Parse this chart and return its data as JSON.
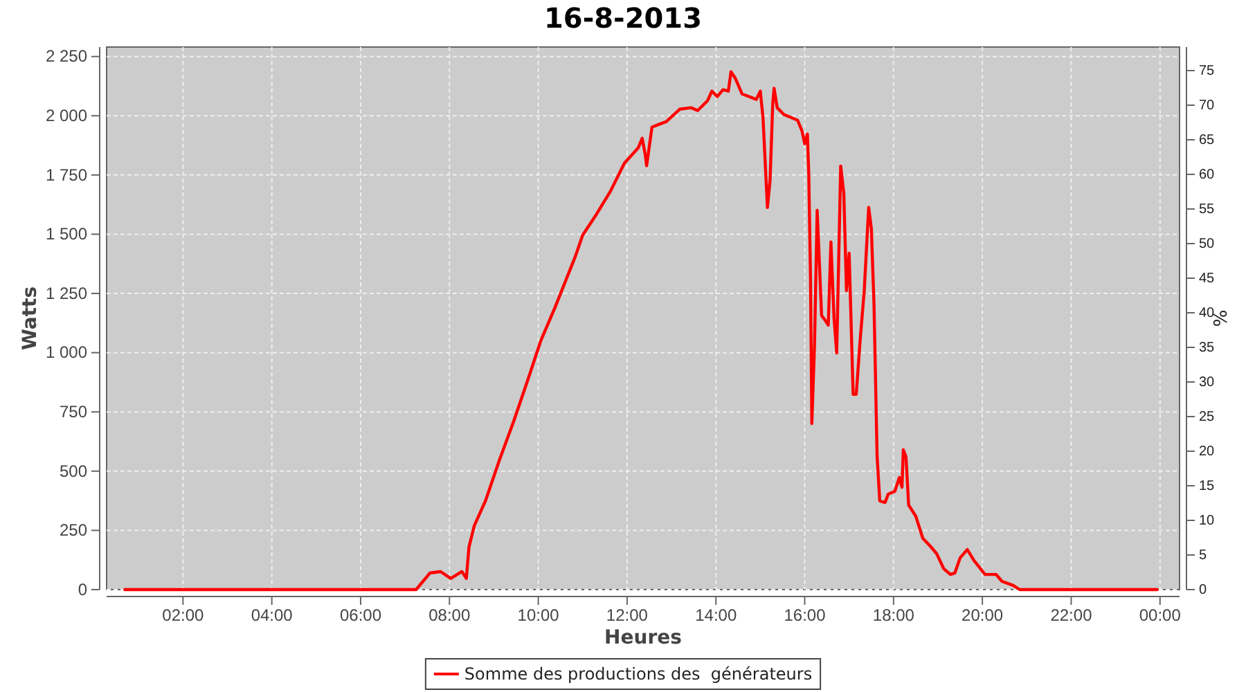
{
  "chart_data": {
    "type": "line",
    "title": "16-8-2013",
    "xlabel": "Heures",
    "ylabel": "Watts",
    "y2label": "%",
    "xlim": [
      0.28,
      24.44
    ],
    "ylim": [
      0,
      2290
    ],
    "y2lim": [
      0,
      78.4
    ],
    "xticks": [
      {
        "value": 2,
        "label": "02:00"
      },
      {
        "value": 4,
        "label": "04:00"
      },
      {
        "value": 6,
        "label": "06:00"
      },
      {
        "value": 8,
        "label": "08:00"
      },
      {
        "value": 10,
        "label": "10:00"
      },
      {
        "value": 12,
        "label": "12:00"
      },
      {
        "value": 14,
        "label": "14:00"
      },
      {
        "value": 16,
        "label": "16:00"
      },
      {
        "value": 18,
        "label": "18:00"
      },
      {
        "value": 20,
        "label": "20:00"
      },
      {
        "value": 22,
        "label": "22:00"
      },
      {
        "value": 24,
        "label": "00:00"
      }
    ],
    "yticks": [
      0,
      250,
      500,
      750,
      {
        "value": 1000,
        "label": "1 000"
      },
      {
        "value": 1250,
        "label": "1 250"
      },
      {
        "value": 1500,
        "label": "1 500"
      },
      {
        "value": 1750,
        "label": "1 750"
      },
      {
        "value": 2000,
        "label": "2 000"
      },
      {
        "value": 2250,
        "label": "2 250"
      }
    ],
    "y2ticks": [
      0,
      5,
      10,
      15,
      20,
      25,
      30,
      35,
      40,
      45,
      50,
      55,
      60,
      65,
      70,
      75
    ],
    "grid": true,
    "legend": "bottom",
    "marker": "none",
    "line_style": "solid",
    "series": [
      {
        "name": "Somme des productions des  générateurs",
        "color": "#ff0000",
        "x": [
          0.69,
          7.25,
          7.56,
          7.8,
          8.03,
          8.28,
          8.38,
          8.44,
          8.56,
          8.81,
          9.13,
          9.44,
          9.75,
          10.06,
          10.38,
          10.69,
          10.84,
          11.0,
          11.31,
          11.63,
          11.94,
          12.25,
          12.34,
          12.41,
          12.44,
          12.56,
          12.72,
          12.88,
          13.19,
          13.44,
          13.59,
          13.81,
          13.91,
          14.03,
          14.16,
          14.28,
          14.34,
          14.44,
          14.59,
          14.91,
          15.0,
          15.06,
          15.16,
          15.22,
          15.28,
          15.31,
          15.38,
          15.53,
          15.84,
          15.94,
          16.0,
          16.06,
          16.09,
          16.13,
          16.16,
          16.22,
          16.28,
          16.38,
          16.47,
          16.53,
          16.59,
          16.66,
          16.72,
          16.81,
          16.88,
          16.94,
          17.0,
          17.09,
          17.16,
          17.25,
          17.34,
          17.44,
          17.5,
          17.56,
          17.63,
          17.69,
          17.81,
          17.88,
          18.03,
          18.13,
          18.19,
          18.22,
          18.28,
          18.34,
          18.5,
          18.66,
          18.81,
          18.97,
          19.13,
          19.28,
          19.38,
          19.5,
          19.66,
          19.81,
          20.06,
          20.31,
          20.44,
          20.69,
          20.84,
          23.94
        ],
        "values": [
          0,
          0,
          70,
          76,
          47,
          76,
          47,
          180,
          270,
          374,
          549,
          707,
          877,
          1052,
          1192,
          1338,
          1409,
          1496,
          1584,
          1683,
          1800,
          1864,
          1905,
          1835,
          1789,
          1952,
          1964,
          1975,
          2028,
          2034,
          2022,
          2063,
          2104,
          2081,
          2110,
          2104,
          2186,
          2157,
          2092,
          2069,
          2104,
          1993,
          1613,
          1730,
          2051,
          2116,
          2034,
          2005,
          1981,
          1935,
          1882,
          1923,
          1759,
          1321,
          701,
          1029,
          1601,
          1157,
          1134,
          1116,
          1467,
          1146,
          999,
          1788,
          1672,
          1262,
          1420,
          824,
          824,
          1058,
          1262,
          1613,
          1525,
          1204,
          561,
          374,
          368,
          403,
          415,
          473,
          432,
          590,
          561,
          357,
          310,
          216,
          187,
          152,
          88,
          64,
          70,
          134,
          169,
          123,
          64,
          64,
          35,
          18,
          0,
          0
        ]
      }
    ]
  }
}
